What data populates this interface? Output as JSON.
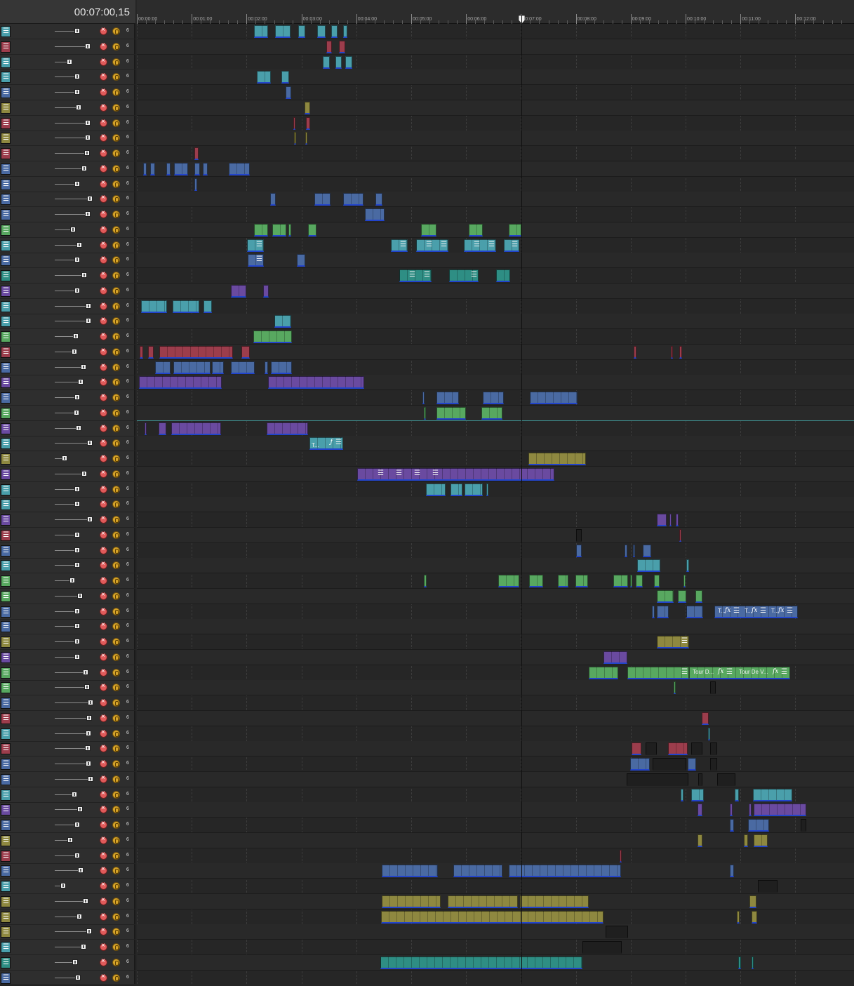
{
  "app": {
    "current_time": "00:07:00,15"
  },
  "ruler": {
    "labels": [
      "00:00:00",
      "00:01:00",
      "00:02:00",
      "00:03:00",
      "00:04:00",
      "00:05:00",
      "00:06:00",
      "00:07:00",
      "00:08:00",
      "00:09:00",
      "00:10:00",
      "00:11:00",
      "00:12:00"
    ]
  },
  "playhead": {
    "time": "00:07:00,15"
  },
  "colors": {
    "teal": "#4a9fab",
    "red": "#9c3d4c",
    "olive": "#8e8840",
    "blue": "#4a6aa2",
    "green": "#58a860",
    "purple": "#6a4aa0",
    "tealdark": "#2e8e84",
    "dark": "#1f1f1f"
  },
  "icons": {
    "mute": "mute-icon",
    "solo": "solo-icon",
    "menu": "menu-icon",
    "fx": "fx-icon",
    "lock": "lock-icon"
  },
  "level_label": "6",
  "tracks": [
    {
      "color": "teal",
      "fader": 110,
      "clips": [
        [
          362,
          20,
          0
        ],
        [
          392,
          22,
          0
        ],
        [
          425,
          10,
          0
        ],
        [
          452,
          12,
          0
        ],
        [
          472,
          9,
          0
        ],
        [
          489,
          6,
          0
        ]
      ]
    },
    {
      "color": "red",
      "fader": 125,
      "clips": [
        [
          465,
          8,
          0
        ],
        [
          483,
          9,
          0
        ]
      ]
    },
    {
      "color": "teal",
      "fader": 99,
      "clips": [
        [
          460,
          10,
          0
        ],
        [
          478,
          9,
          0
        ],
        [
          492,
          10,
          0
        ]
      ]
    },
    {
      "color": "teal",
      "fader": 110,
      "clips": [
        [
          366,
          20,
          0
        ],
        [
          401,
          11,
          0
        ]
      ]
    },
    {
      "color": "blue",
      "fader": 110,
      "clips": [
        [
          407,
          8,
          0
        ]
      ]
    },
    {
      "color": "olive",
      "fader": 112,
      "clips": [
        [
          434,
          8,
          0
        ]
      ]
    },
    {
      "color": "red",
      "fader": 125,
      "clips": [
        [
          418,
          3,
          0
        ],
        [
          436,
          6,
          0
        ]
      ]
    },
    {
      "color": "olive",
      "fader": 125,
      "clips": [
        [
          419,
          3,
          0
        ],
        [
          435,
          3,
          0
        ]
      ]
    },
    {
      "color": "red",
      "fader": 124,
      "clips": [
        [
          277,
          6,
          0
        ]
      ]
    },
    {
      "color": "blue",
      "fader": 120,
      "clips": [
        [
          204,
          5,
          0
        ],
        [
          214,
          7,
          0
        ],
        [
          237,
          6,
          0
        ],
        [
          248,
          20,
          0
        ],
        [
          277,
          8,
          0
        ],
        [
          289,
          7,
          0
        ],
        [
          326,
          30,
          0
        ]
      ]
    },
    {
      "color": "blue",
      "fader": 110,
      "clips": [
        [
          277,
          4,
          0
        ]
      ]
    },
    {
      "color": "blue",
      "fader": 128,
      "clips": [
        [
          385,
          8,
          0
        ],
        [
          448,
          23,
          0
        ],
        [
          489,
          29,
          0
        ],
        [
          535,
          10,
          0
        ]
      ]
    },
    {
      "color": "blue",
      "fader": 125,
      "clips": [
        [
          520,
          28,
          0
        ]
      ]
    },
    {
      "color": "green",
      "fader": 104,
      "clips": [
        [
          362,
          20,
          0
        ],
        [
          388,
          20,
          0
        ],
        [
          411,
          4,
          0
        ],
        [
          439,
          12,
          0
        ],
        [
          600,
          22,
          0
        ],
        [
          668,
          20,
          0
        ],
        [
          725,
          18,
          0
        ]
      ]
    },
    {
      "color": "teal",
      "fader": 113,
      "clips": [
        [
          352,
          24,
          1
        ],
        [
          557,
          24,
          1
        ],
        [
          593,
          46,
          2
        ],
        [
          661,
          46,
          2
        ],
        [
          718,
          22,
          1
        ]
      ]
    },
    {
      "color": "blue",
      "fader": 110,
      "clips": [
        [
          353,
          23,
          1
        ],
        [
          423,
          12,
          0
        ]
      ]
    },
    {
      "color": "tealdark",
      "fader": 120,
      "clips": [
        [
          569,
          46,
          2
        ],
        [
          640,
          42,
          1
        ],
        [
          707,
          20,
          0
        ]
      ]
    },
    {
      "color": "purple",
      "fader": 110,
      "clips": [
        [
          329,
          22,
          0
        ],
        [
          375,
          8,
          0
        ]
      ]
    },
    {
      "color": "teal",
      "fader": 126,
      "clips": [
        [
          201,
          37,
          0
        ],
        [
          246,
          38,
          0
        ],
        [
          290,
          12,
          0
        ]
      ]
    },
    {
      "color": "teal",
      "fader": 126,
      "clips": [
        [
          391,
          24,
          0
        ]
      ]
    },
    {
      "color": "green",
      "fader": 108,
      "clips": [
        [
          361,
          55,
          0
        ]
      ]
    },
    {
      "color": "red",
      "fader": 106,
      "clips": [
        [
          199,
          5,
          0
        ],
        [
          211,
          8,
          0
        ],
        [
          227,
          105,
          0
        ],
        [
          344,
          12,
          0
        ],
        [
          903,
          4,
          0
        ],
        [
          956,
          3,
          0
        ],
        [
          968,
          4,
          0
        ]
      ]
    },
    {
      "color": "blue",
      "fader": 119,
      "clips": [
        [
          221,
          22,
          0
        ],
        [
          247,
          53,
          0
        ],
        [
          302,
          17,
          0
        ],
        [
          329,
          34,
          0
        ],
        [
          377,
          5,
          0
        ],
        [
          386,
          30,
          0
        ]
      ]
    },
    {
      "color": "purple",
      "fader": 115,
      "clips": [
        [
          198,
          118,
          0
        ],
        [
          382,
          137,
          0
        ]
      ]
    },
    {
      "color": "blue",
      "fader": 110,
      "clips": [
        [
          602,
          3,
          0
        ],
        [
          622,
          32,
          0
        ],
        [
          688,
          30,
          0
        ],
        [
          755,
          68,
          0
        ]
      ]
    },
    {
      "color": "green",
      "fader": 109,
      "clips": [
        [
          604,
          3,
          0
        ],
        [
          622,
          42,
          0
        ],
        [
          686,
          30,
          0
        ]
      ]
    },
    {
      "color": "purple",
      "fader": 112,
      "clips": [
        [
          206,
          3,
          0
        ],
        [
          226,
          11,
          0
        ],
        [
          244,
          71,
          0
        ],
        [
          380,
          59,
          0
        ]
      ]
    },
    {
      "color": "teal",
      "fader": 128,
      "clips": [
        [
          441,
          48,
          3
        ]
      ]
    },
    {
      "color": "olive",
      "fader": 92,
      "clips": [
        [
          753,
          82,
          0
        ]
      ]
    },
    {
      "color": "purple",
      "fader": 120,
      "clips": [
        [
          509,
          281,
          4
        ]
      ]
    },
    {
      "color": "teal",
      "fader": 110,
      "clips": [
        [
          607,
          28,
          0
        ],
        [
          642,
          17,
          0
        ],
        [
          662,
          26,
          0
        ],
        [
          693,
          3,
          0
        ]
      ]
    },
    {
      "color": "teal",
      "fader": 110,
      "clips": []
    },
    {
      "color": "purple",
      "fader": 128,
      "clips": [
        [
          936,
          14,
          0
        ],
        [
          954,
          3,
          0
        ],
        [
          963,
          4,
          0
        ]
      ]
    },
    {
      "color": "red",
      "fader": 110,
      "clips": [
        [
          821,
          8,
          5
        ],
        [
          968,
          3,
          0
        ]
      ]
    },
    {
      "color": "blue",
      "fader": 110,
      "clips": [
        [
          821,
          8,
          0
        ],
        [
          890,
          4,
          0
        ],
        [
          902,
          3,
          0
        ],
        [
          916,
          12,
          0
        ]
      ]
    },
    {
      "color": "teal",
      "fader": 110,
      "clips": [
        [
          908,
          33,
          0
        ],
        [
          978,
          4,
          0
        ]
      ]
    },
    {
      "color": "green",
      "fader": 103,
      "clips": [
        [
          604,
          4,
          0
        ],
        [
          710,
          30,
          0
        ],
        [
          754,
          20,
          0
        ],
        [
          795,
          15,
          0
        ],
        [
          820,
          18,
          0
        ],
        [
          874,
          21,
          0
        ],
        [
          898,
          3,
          0
        ],
        [
          906,
          10,
          0
        ],
        [
          932,
          8,
          0
        ],
        [
          974,
          3,
          0
        ]
      ]
    },
    {
      "color": "green",
      "fader": 114,
      "clips": [
        [
          936,
          24,
          0
        ],
        [
          966,
          12,
          0
        ],
        [
          991,
          10,
          0
        ]
      ]
    },
    {
      "color": "blue",
      "fader": 110,
      "clips": [
        [
          929,
          4,
          0
        ],
        [
          936,
          17,
          0
        ],
        [
          978,
          24,
          0
        ],
        [
          1018,
          119,
          6
        ]
      ]
    },
    {
      "color": "blue",
      "fader": 110,
      "clips": []
    },
    {
      "color": "olive",
      "fader": 110,
      "clips": [
        [
          936,
          46,
          1
        ]
      ]
    },
    {
      "color": "purple",
      "fader": 110,
      "clips": [
        [
          860,
          34,
          0
        ]
      ]
    },
    {
      "color": "green",
      "fader": 122,
      "clips": [
        [
          839,
          42,
          0
        ],
        [
          894,
          88,
          1
        ],
        [
          982,
          144,
          7
        ]
      ]
    },
    {
      "color": "green",
      "fader": 124,
      "clips": [
        [
          960,
          3,
          0
        ],
        [
          1012,
          8,
          5
        ]
      ]
    },
    {
      "color": "blue",
      "fader": 129,
      "clips": []
    },
    {
      "color": "red",
      "fader": 127,
      "clips": [
        [
          1000,
          10,
          0
        ]
      ]
    },
    {
      "color": "teal",
      "fader": 126,
      "clips": [
        [
          1009,
          3,
          0
        ]
      ]
    },
    {
      "color": "red",
      "fader": 125,
      "clips": [
        [
          900,
          14,
          0
        ],
        [
          920,
          16,
          5
        ],
        [
          952,
          28,
          0
        ],
        [
          985,
          16,
          5
        ],
        [
          1012,
          10,
          5
        ]
      ]
    },
    {
      "color": "blue",
      "fader": 126,
      "clips": [
        [
          898,
          28,
          0
        ],
        [
          930,
          48,
          5
        ],
        [
          980,
          12,
          0
        ],
        [
          1012,
          10,
          5
        ]
      ]
    },
    {
      "color": "blue",
      "fader": 129,
      "clips": [
        [
          893,
          88,
          5
        ],
        [
          995,
          6,
          5
        ],
        [
          1022,
          26,
          5
        ]
      ]
    },
    {
      "color": "teal",
      "fader": 106,
      "clips": [
        [
          970,
          4,
          0
        ],
        [
          985,
          18,
          0
        ],
        [
          1047,
          6,
          0
        ],
        [
          1073,
          56,
          0
        ]
      ]
    },
    {
      "color": "purple",
      "fader": 114,
      "clips": [
        [
          994,
          7,
          0
        ],
        [
          1040,
          4,
          0
        ],
        [
          1067,
          4,
          0
        ],
        [
          1074,
          75,
          0
        ]
      ]
    },
    {
      "color": "blue",
      "fader": 110,
      "clips": [
        [
          1040,
          6,
          0
        ],
        [
          1066,
          30,
          0
        ],
        [
          1141,
          8,
          5
        ]
      ]
    },
    {
      "color": "olive",
      "fader": 100,
      "clips": [
        [
          994,
          7,
          0
        ],
        [
          1060,
          6,
          0
        ],
        [
          1074,
          20,
          0
        ]
      ]
    },
    {
      "color": "red",
      "fader": 110,
      "clips": [
        [
          883,
          3,
          0
        ]
      ]
    },
    {
      "color": "blue",
      "fader": 115,
      "clips": [
        [
          544,
          80,
          0
        ],
        [
          646,
          70,
          0
        ],
        [
          725,
          160,
          0
        ],
        [
          1040,
          6,
          0
        ]
      ]
    },
    {
      "color": "teal",
      "fader": 90,
      "clips": [
        [
          1080,
          28,
          5
        ]
      ]
    },
    {
      "color": "olive",
      "fader": 122,
      "clips": [
        [
          544,
          84,
          0
        ],
        [
          638,
          100,
          0
        ],
        [
          741,
          98,
          0
        ],
        [
          1068,
          10,
          0
        ]
      ]
    },
    {
      "color": "olive",
      "fader": 113,
      "clips": [
        [
          543,
          317,
          0
        ],
        [
          1050,
          4,
          0
        ],
        [
          1071,
          8,
          0
        ]
      ]
    },
    {
      "color": "olive",
      "fader": 127,
      "clips": [
        [
          863,
          32,
          5
        ]
      ]
    },
    {
      "color": "teal",
      "fader": 119,
      "clips": [
        [
          830,
          56,
          5
        ]
      ]
    },
    {
      "color": "tealdark",
      "fader": 107,
      "clips": [
        [
          542,
          288,
          0
        ],
        [
          1052,
          4,
          0
        ],
        [
          1071,
          3,
          0
        ]
      ]
    },
    {
      "color": "blue",
      "fader": 111,
      "clips": []
    }
  ],
  "titled_clips": {
    "t27_a": "T...",
    "t38_a": "T...",
    "t38_b": "T...",
    "t38_c": "T...",
    "t42_a": "Tour D...",
    "t42_b": "Tour De V..."
  }
}
